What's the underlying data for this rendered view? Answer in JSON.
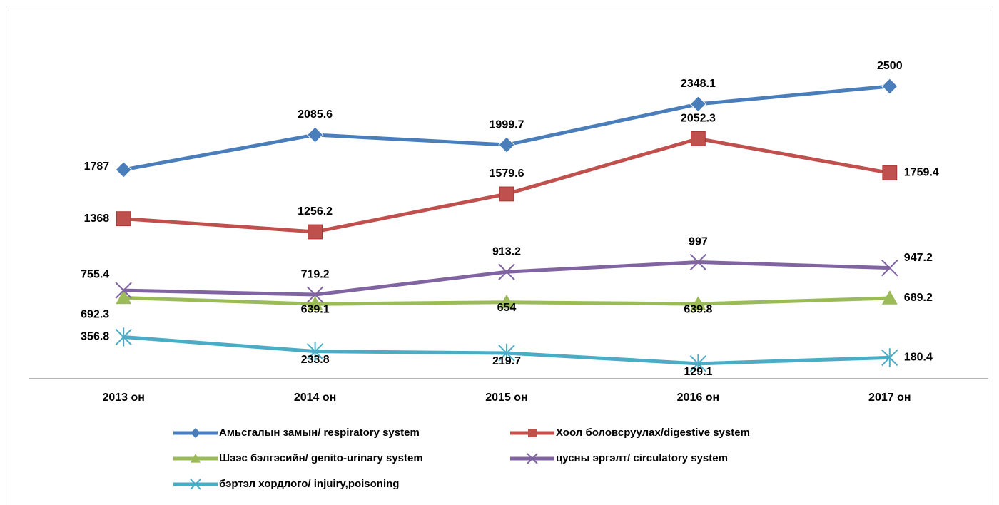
{
  "chart_data": {
    "type": "line",
    "categories": [
      "2013  он",
      "2014  он",
      "2015  он",
      "2016  он",
      "2017  он"
    ],
    "ylim": [
      0,
      3000
    ],
    "series": [
      {
        "name": "Амьсгалын замын/ respiratory system",
        "color": "#4a7ebb",
        "marker": "diamond",
        "values": [
          1787,
          2085.6,
          1999.7,
          2348.1,
          2500
        ]
      },
      {
        "name": "Хоол боловсруулах/digestive system",
        "color": "#c0504d",
        "marker": "square",
        "values": [
          1368,
          1256.2,
          1579.6,
          2052.3,
          1759.4
        ]
      },
      {
        "name": "Шээс бэлгэсийн/ genito-urinary system",
        "color": "#9bbb59",
        "marker": "triangle",
        "values": [
          692.3,
          639.1,
          654,
          639.8,
          689.2
        ]
      },
      {
        "name": "цусны эргэлт/ circulatory system",
        "color": "#8064a2",
        "marker": "x",
        "values": [
          755.4,
          719.2,
          913.2,
          997,
          947.2
        ]
      },
      {
        "name": "бэртэл хордлого/ injuiry,poisoning",
        "color": "#4bacc6",
        "marker": "star",
        "values": [
          356.8,
          233.8,
          219.7,
          129.1,
          180.4
        ]
      }
    ]
  }
}
